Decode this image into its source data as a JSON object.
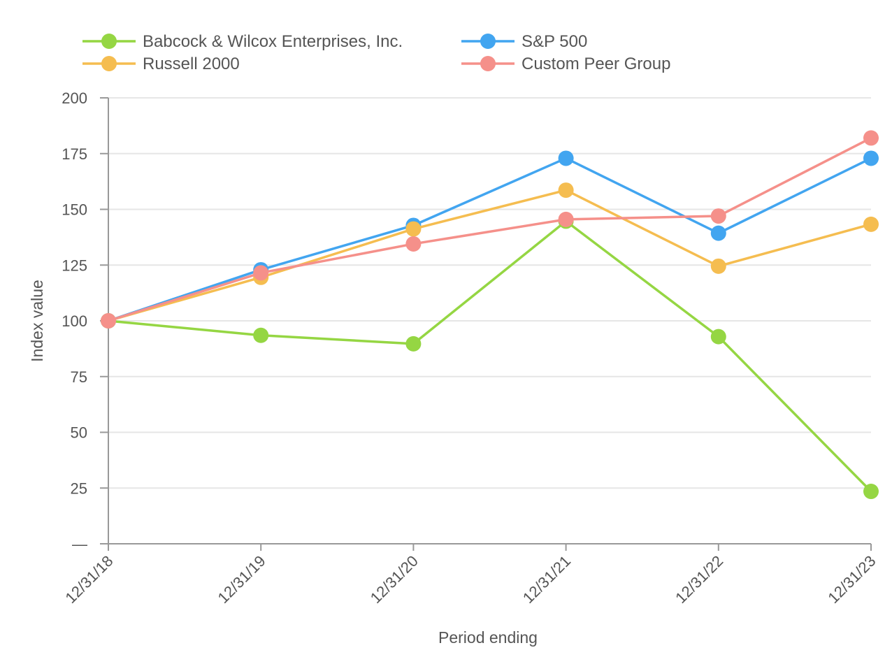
{
  "chart_data": {
    "type": "line",
    "title": "",
    "xlabel": "Period ending",
    "ylabel": "Index value",
    "categories": [
      "12/31/18",
      "12/31/19",
      "12/31/20",
      "12/31/21",
      "12/31/22",
      "12/31/23"
    ],
    "ylim": [
      0,
      200
    ],
    "yticks": [
      0,
      25,
      50,
      75,
      100,
      125,
      150,
      175,
      200
    ],
    "ytick_labels": [
      "—",
      "25",
      "50",
      "75",
      "100",
      "125",
      "150",
      "175",
      "200"
    ],
    "grid": true,
    "legend_position": "top",
    "series": [
      {
        "name": "Babcock & Wilcox Enterprises, Inc.",
        "color": "#95d643",
        "values": [
          100.0,
          93.5,
          89.7,
          144.7,
          92.9,
          23.5
        ]
      },
      {
        "name": "S&P 500",
        "color": "#42a5f0",
        "values": [
          100.0,
          122.9,
          142.8,
          172.9,
          139.3,
          172.9
        ]
      },
      {
        "name": "Russell 2000",
        "color": "#f5bd50",
        "values": [
          100.0,
          119.5,
          141.2,
          158.6,
          124.5,
          143.3
        ]
      },
      {
        "name": "Custom Peer Group",
        "color": "#f5908a",
        "values": [
          100.0,
          121.5,
          134.5,
          145.5,
          147.0,
          182.0
        ]
      }
    ]
  }
}
